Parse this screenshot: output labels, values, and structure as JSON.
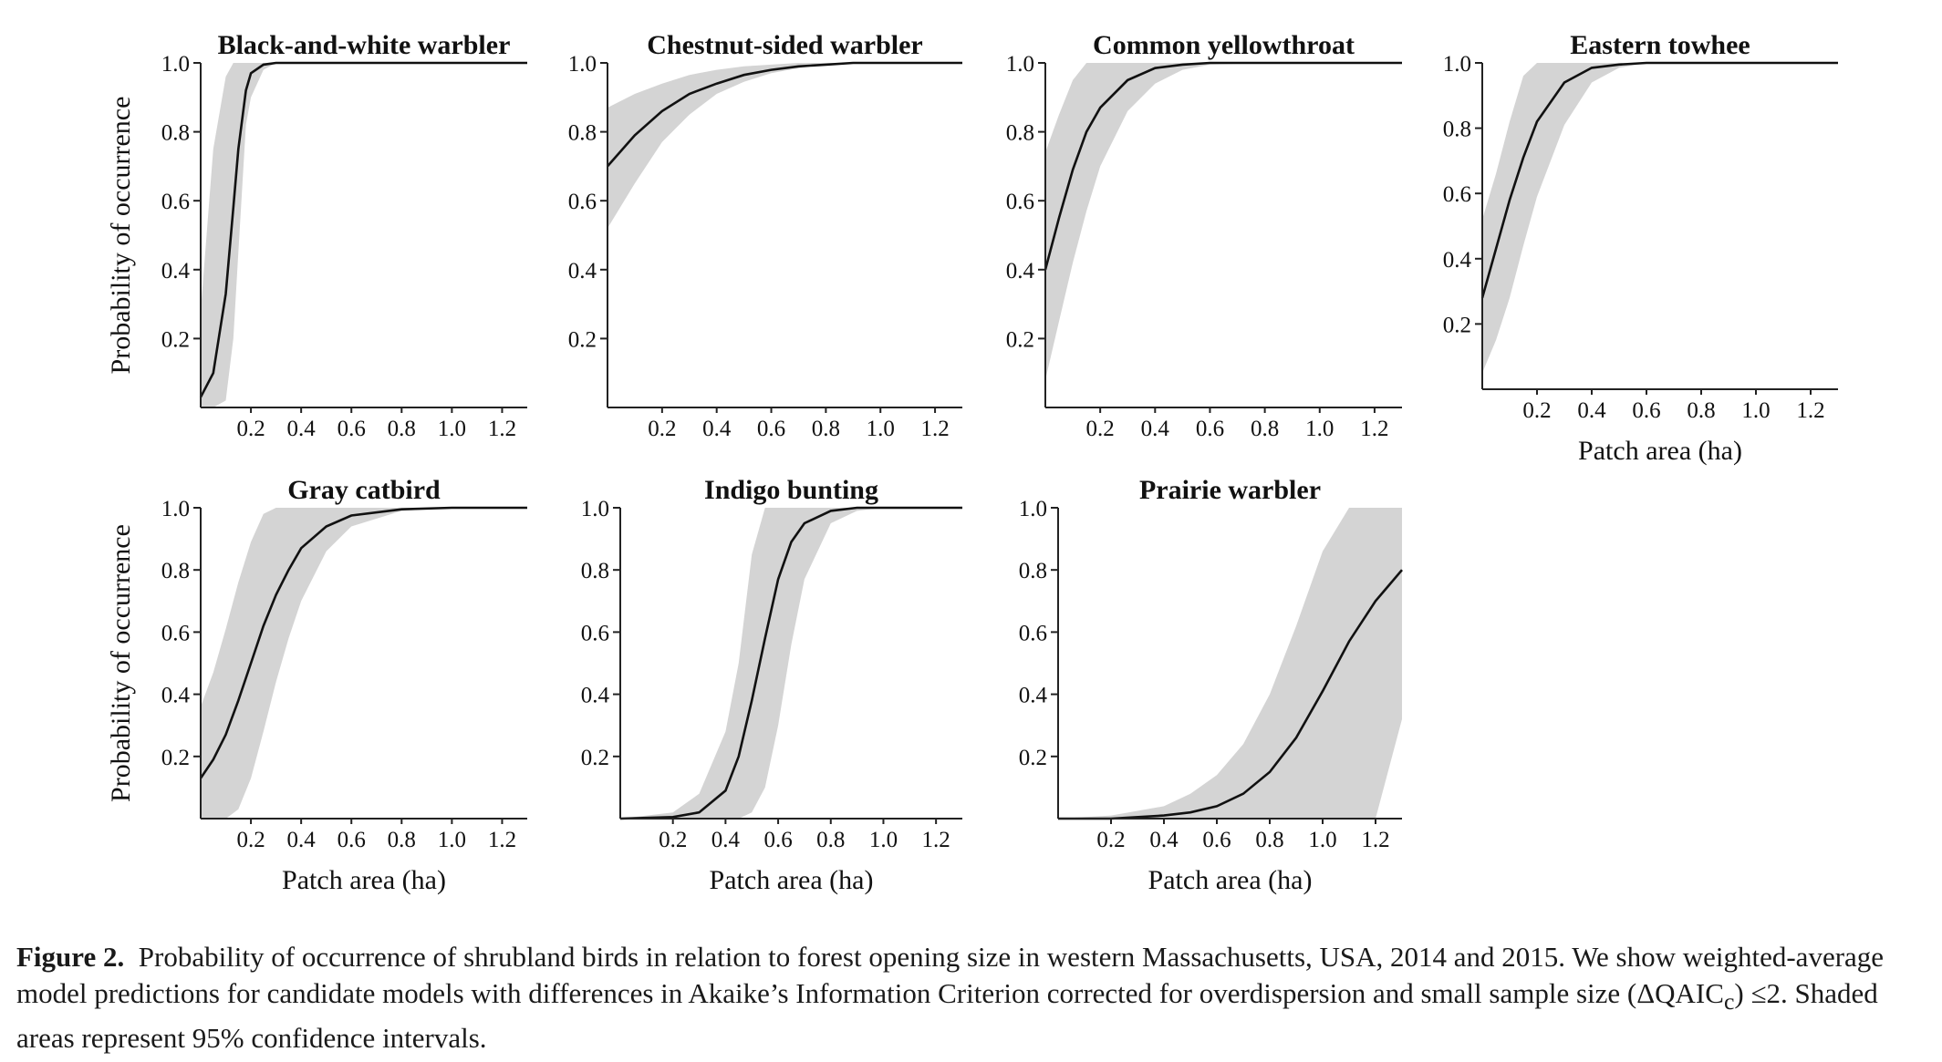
{
  "chart_data": [
    {
      "type": "line",
      "title": "Black-and-white warbler",
      "ylabel": "Probability of occurrence",
      "xlabel": "",
      "xlim": [
        0,
        1.3
      ],
      "ylim": [
        0,
        1.0
      ],
      "xticks": [
        "0.2",
        "0.4",
        "0.6",
        "0.8",
        "1.0",
        "1.2"
      ],
      "yticks": [
        "0.2",
        "0.4",
        "0.6",
        "0.8",
        "1.0"
      ],
      "series": [
        {
          "x": [
            0.0,
            0.05,
            0.1,
            0.13,
            0.15,
            0.18,
            0.2,
            0.25,
            0.3,
            0.4,
            0.6,
            0.8,
            1.0,
            1.2,
            1.3
          ],
          "y": [
            0.03,
            0.1,
            0.33,
            0.58,
            0.75,
            0.92,
            0.97,
            0.995,
            1.0,
            1.0,
            1.0,
            1.0,
            1.0,
            1.0,
            1.0
          ],
          "ci_low": [
            0.0,
            0.0,
            0.02,
            0.2,
            0.45,
            0.82,
            0.9,
            0.98,
            1.0,
            1.0,
            1.0,
            1.0,
            1.0,
            1.0,
            1.0
          ],
          "ci_high": [
            0.28,
            0.75,
            0.96,
            1.0,
            1.0,
            1.0,
            1.0,
            1.0,
            1.0,
            1.0,
            1.0,
            1.0,
            1.0,
            1.0,
            1.0
          ]
        }
      ]
    },
    {
      "type": "line",
      "title": "Chestnut-sided warbler",
      "ylabel": "",
      "xlabel": "",
      "xlim": [
        0,
        1.3
      ],
      "ylim": [
        0,
        1.0
      ],
      "xticks": [
        "0.2",
        "0.4",
        "0.6",
        "0.8",
        "1.0",
        "1.2"
      ],
      "yticks": [
        "0.2",
        "0.4",
        "0.6",
        "0.8",
        "1.0"
      ],
      "series": [
        {
          "x": [
            0.0,
            0.1,
            0.2,
            0.3,
            0.4,
            0.5,
            0.6,
            0.7,
            0.8,
            0.9,
            1.0,
            1.1,
            1.2,
            1.3
          ],
          "y": [
            0.7,
            0.79,
            0.86,
            0.91,
            0.94,
            0.965,
            0.98,
            0.99,
            0.995,
            1.0,
            1.0,
            1.0,
            1.0,
            1.0
          ],
          "ci_low": [
            0.52,
            0.65,
            0.77,
            0.85,
            0.91,
            0.945,
            0.97,
            0.985,
            0.995,
            1.0,
            1.0,
            1.0,
            1.0,
            1.0
          ],
          "ci_high": [
            0.87,
            0.91,
            0.94,
            0.965,
            0.98,
            0.99,
            0.995,
            1.0,
            1.0,
            1.0,
            1.0,
            1.0,
            1.0,
            1.0
          ]
        }
      ]
    },
    {
      "type": "line",
      "title": "Common yellowthroat",
      "ylabel": "",
      "xlabel": "",
      "xlim": [
        0,
        1.3
      ],
      "ylim": [
        0,
        1.0
      ],
      "xticks": [
        "0.2",
        "0.4",
        "0.6",
        "0.8",
        "1.0",
        "1.2"
      ],
      "yticks": [
        "0.2",
        "0.4",
        "0.6",
        "0.8",
        "1.0"
      ],
      "series": [
        {
          "x": [
            0.0,
            0.05,
            0.1,
            0.15,
            0.2,
            0.3,
            0.4,
            0.5,
            0.6,
            0.8,
            1.0,
            1.2,
            1.3
          ],
          "y": [
            0.4,
            0.55,
            0.69,
            0.8,
            0.87,
            0.95,
            0.985,
            0.995,
            1.0,
            1.0,
            1.0,
            1.0,
            1.0
          ],
          "ci_low": [
            0.08,
            0.25,
            0.42,
            0.57,
            0.7,
            0.86,
            0.94,
            0.98,
            0.995,
            1.0,
            1.0,
            1.0,
            1.0
          ],
          "ci_high": [
            0.74,
            0.85,
            0.95,
            1.0,
            1.0,
            1.0,
            1.0,
            1.0,
            1.0,
            1.0,
            1.0,
            1.0,
            1.0
          ]
        }
      ]
    },
    {
      "type": "line",
      "title": "Eastern towhee",
      "ylabel": "",
      "xlabel": "Patch area (ha)",
      "xlim": [
        0,
        1.3
      ],
      "ylim": [
        0,
        1.0
      ],
      "xticks": [
        "0.2",
        "0.4",
        "0.6",
        "0.8",
        "1.0",
        "1.2"
      ],
      "yticks": [
        "0.2",
        "0.4",
        "0.6",
        "0.8",
        "1.0"
      ],
      "series": [
        {
          "x": [
            0.0,
            0.05,
            0.1,
            0.15,
            0.2,
            0.3,
            0.4,
            0.5,
            0.6,
            0.8,
            1.0,
            1.2,
            1.3
          ],
          "y": [
            0.28,
            0.43,
            0.58,
            0.71,
            0.82,
            0.94,
            0.985,
            0.995,
            1.0,
            1.0,
            1.0,
            1.0,
            1.0
          ],
          "ci_low": [
            0.05,
            0.15,
            0.28,
            0.44,
            0.59,
            0.81,
            0.94,
            0.985,
            1.0,
            1.0,
            1.0,
            1.0,
            1.0
          ],
          "ci_high": [
            0.52,
            0.66,
            0.82,
            0.96,
            1.0,
            1.0,
            1.0,
            1.0,
            1.0,
            1.0,
            1.0,
            1.0,
            1.0
          ]
        }
      ]
    },
    {
      "type": "line",
      "title": "Gray catbird",
      "ylabel": "Probability of occurrence",
      "xlabel": "Patch area (ha)",
      "xlim": [
        0,
        1.3
      ],
      "ylim": [
        0,
        1.0
      ],
      "xticks": [
        "0.2",
        "0.4",
        "0.6",
        "0.8",
        "1.0",
        "1.2"
      ],
      "yticks": [
        "0.2",
        "0.4",
        "0.6",
        "0.8",
        "1.0"
      ],
      "series": [
        {
          "x": [
            0.0,
            0.05,
            0.1,
            0.15,
            0.2,
            0.25,
            0.3,
            0.35,
            0.4,
            0.5,
            0.6,
            0.8,
            1.0,
            1.2,
            1.3
          ],
          "y": [
            0.13,
            0.19,
            0.27,
            0.38,
            0.5,
            0.62,
            0.72,
            0.8,
            0.87,
            0.94,
            0.975,
            0.995,
            1.0,
            1.0,
            1.0
          ],
          "ci_low": [
            0.0,
            0.0,
            0.0,
            0.03,
            0.13,
            0.28,
            0.44,
            0.58,
            0.7,
            0.86,
            0.94,
            0.99,
            1.0,
            1.0,
            1.0
          ],
          "ci_high": [
            0.36,
            0.47,
            0.61,
            0.76,
            0.89,
            0.98,
            1.0,
            1.0,
            1.0,
            1.0,
            1.0,
            1.0,
            1.0,
            1.0,
            1.0
          ]
        }
      ]
    },
    {
      "type": "line",
      "title": "Indigo bunting",
      "ylabel": "",
      "xlabel": "Patch area (ha)",
      "xlim": [
        0,
        1.3
      ],
      "ylim": [
        0,
        1.0
      ],
      "xticks": [
        "0.2",
        "0.4",
        "0.6",
        "0.8",
        "1.0",
        "1.2"
      ],
      "yticks": [
        "0.2",
        "0.4",
        "0.6",
        "0.8",
        "1.0"
      ],
      "series": [
        {
          "x": [
            0.0,
            0.2,
            0.3,
            0.4,
            0.45,
            0.5,
            0.55,
            0.6,
            0.65,
            0.7,
            0.8,
            0.9,
            1.0,
            1.2,
            1.3
          ],
          "y": [
            0.0,
            0.005,
            0.02,
            0.09,
            0.2,
            0.38,
            0.58,
            0.77,
            0.89,
            0.95,
            0.99,
            1.0,
            1.0,
            1.0,
            1.0
          ],
          "ci_low": [
            0.0,
            0.0,
            0.0,
            0.0,
            0.0,
            0.02,
            0.1,
            0.3,
            0.56,
            0.77,
            0.95,
            0.99,
            1.0,
            1.0,
            1.0
          ],
          "ci_high": [
            0.0,
            0.02,
            0.08,
            0.28,
            0.5,
            0.85,
            1.0,
            1.0,
            1.0,
            1.0,
            1.0,
            1.0,
            1.0,
            1.0,
            1.0
          ]
        }
      ]
    },
    {
      "type": "line",
      "title": "Prairie warbler",
      "ylabel": "",
      "xlabel": "Patch area (ha)",
      "xlim": [
        0,
        1.3
      ],
      "ylim": [
        0,
        1.0
      ],
      "xticks": [
        "0.2",
        "0.4",
        "0.6",
        "0.8",
        "1.0",
        "1.2"
      ],
      "yticks": [
        "0.2",
        "0.4",
        "0.6",
        "0.8",
        "1.0"
      ],
      "series": [
        {
          "x": [
            0.0,
            0.2,
            0.4,
            0.5,
            0.6,
            0.7,
            0.8,
            0.9,
            1.0,
            1.1,
            1.2,
            1.3
          ],
          "y": [
            0.0,
            0.0,
            0.01,
            0.02,
            0.04,
            0.08,
            0.15,
            0.26,
            0.41,
            0.57,
            0.7,
            0.8
          ],
          "ci_low": [
            0.0,
            0.0,
            0.0,
            0.0,
            0.0,
            0.0,
            0.0,
            0.0,
            0.0,
            0.0,
            0.0,
            0.32
          ],
          "ci_high": [
            0.0,
            0.01,
            0.04,
            0.08,
            0.14,
            0.24,
            0.4,
            0.62,
            0.86,
            1.0,
            1.0,
            1.0
          ]
        }
      ]
    }
  ],
  "caption": {
    "label": "Figure 2.",
    "text": "Probability of occurrence of shrubland birds in relation to forest opening size in western Massachusetts, USA, 2014 and 2015. We show weighted-average model predictions for candidate models with differences in Akaike’s Information Criterion corrected for overdispersion and small sample size (ΔQAIC",
    "subscript": "c",
    "text_end": ") ≤2. Shaded areas represent 95% confidence intervals."
  },
  "colors": {
    "ci_band": "#d4d4d4",
    "line": "#111111",
    "axis": "#222222"
  }
}
